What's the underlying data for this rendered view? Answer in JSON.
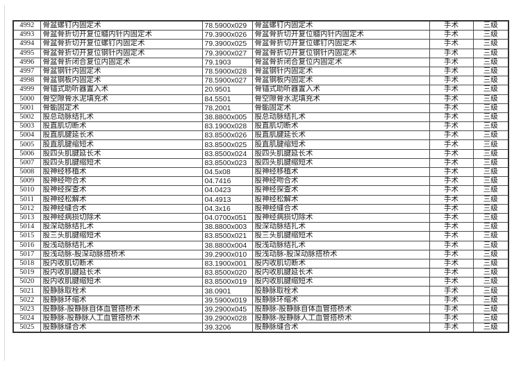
{
  "colors": {
    "background": "#ffffff",
    "table_border": "#4a4a4a",
    "table_outer_border": "#333333",
    "text": "#1a1a1a",
    "page_edge_line": "#d6d6d6"
  },
  "table": {
    "column_keys": [
      "sequence_number",
      "procedure_name",
      "procedure_code",
      "procedure_name_repeat",
      "category",
      "level"
    ],
    "rows": [
      [
        "4992",
        "骨盆螺钉内固定术",
        "78.5900x029",
        "骨盆螺钉内固定术",
        "手术",
        "三级"
      ],
      [
        "4993",
        "骨盆骨折切开复位髓内针内固定术",
        "79.3900x026",
        "骨盆骨折切开复位髓内针内固定术",
        "手术",
        "三级"
      ],
      [
        "4994",
        "骨盆骨折切开复位螺钉内固定术",
        "79.3900x025",
        "骨盆骨折切开复位螺钉内固定术",
        "手术",
        "三级"
      ],
      [
        "4995",
        "骨盆骨折切开复位钢针内固定术",
        "79.3900x027",
        "骨盆骨折切开复位钢针内固定术",
        "手术",
        "三级"
      ],
      [
        "4996",
        "骨盆骨折闭合复位内固定术",
        "79.1903",
        "骨盆骨折闭合复位内固定术",
        "手术",
        "三级"
      ],
      [
        "4997",
        "骨盆钢针内固定术",
        "78.5900x028",
        "骨盆钢针内固定术",
        "手术",
        "三级"
      ],
      [
        "4998",
        "骨盆钢板内固定术",
        "78.5900x027",
        "骨盆钢板内固定术",
        "手术",
        "三级"
      ],
      [
        "4999",
        "骨锚式助听器置入术",
        "20.9501",
        "骨锚式助听器置入术",
        "手术",
        "三级"
      ],
      [
        "5000",
        "骨空隙骨水泥填充术",
        "84.5501",
        "骨空隙骨水泥填充术",
        "手术",
        "三级"
      ],
      [
        "5001",
        "骨骺固定术",
        "78.2001",
        "骨骺固定术",
        "手术",
        "三级"
      ],
      [
        "5002",
        "股总动脉结扎术",
        "38.8800x005",
        "股总动脉结扎术",
        "手术",
        "三级"
      ],
      [
        "5003",
        "股直肌切断术",
        "83.1900x028",
        "股直肌切断术",
        "手术",
        "三级"
      ],
      [
        "5004",
        "股直肌腱延长术",
        "83.8500x026",
        "股直肌腱延长术",
        "手术",
        "三级"
      ],
      [
        "5005",
        "股直肌腱缩短术",
        "83.8500x025",
        "股直肌腱缩短术",
        "手术",
        "三级"
      ],
      [
        "5006",
        "股四头肌腱延长术",
        "83.8500x024",
        "股四头肌腱延长术",
        "手术",
        "三级"
      ],
      [
        "5007",
        "股四头肌腱缩短术",
        "83.8500x023",
        "股四头肌腱缩短术",
        "手术",
        "三级"
      ],
      [
        "5008",
        "股神经移植术",
        "04.5x08",
        "股神经移植术",
        "手术",
        "三级"
      ],
      [
        "5009",
        "股神经吻合术",
        "04.7416",
        "股神经吻合术",
        "手术",
        "三级"
      ],
      [
        "5010",
        "股神经探查术",
        "04.0423",
        "股神经探查术",
        "手术",
        "三级"
      ],
      [
        "5011",
        "股神经松解术",
        "04.4913",
        "股神经松解术",
        "手术",
        "三级"
      ],
      [
        "5012",
        "股神经缝合术",
        "04.3x16",
        "股神经缝合术",
        "手术",
        "三级"
      ],
      [
        "5013",
        "股神经病损切除术",
        "04.0700x051",
        "股神经病损切除术",
        "手术",
        "三级"
      ],
      [
        "5014",
        "股深动脉结扎术",
        "38.8800x003",
        "股深动脉结扎术",
        "手术",
        "三级"
      ],
      [
        "5015",
        "股三头肌腱缩短术",
        "83.8500x021",
        "股三头肌腱缩短术",
        "手术",
        "三级"
      ],
      [
        "5016",
        "股浅动脉结扎术",
        "38.8800x004",
        "股浅动脉结扎术",
        "手术",
        "三级"
      ],
      [
        "5017",
        "股浅动脉-股深动脉搭桥术",
        "39.2900x010",
        "股浅动脉-股深动脉搭桥术",
        "手术",
        "三级"
      ],
      [
        "5018",
        "股内收肌切断术",
        "83.1900x001",
        "股内收肌切断术",
        "手术",
        "三级"
      ],
      [
        "5019",
        "股内收肌腱延长术",
        "83.8500x020",
        "股内收肌腱延长术",
        "手术",
        "三级"
      ],
      [
        "5020",
        "股内收肌腱缩短术",
        "83.8500x019",
        "股内收肌腱缩短术",
        "手术",
        "三级"
      ],
      [
        "5021",
        "股静脉取栓术",
        "38.0901",
        "股静脉取栓术",
        "手术",
        "三级"
      ],
      [
        "5022",
        "股静脉环缩术",
        "39.5900x019",
        "股静脉环缩术",
        "手术",
        "三级"
      ],
      [
        "5023",
        "股静脉-股静脉自体血管搭桥术",
        "39.2900x045",
        "股静脉-股静脉自体血管搭桥术",
        "手术",
        "三级"
      ],
      [
        "5024",
        "股静脉-股静脉人工血管搭桥术",
        "39.2900x028",
        "股静脉-股静脉人工血管搭桥术",
        "手术",
        "三级"
      ],
      [
        "5025",
        "股静脉缝合术",
        "39.3206",
        "股静脉缝合术",
        "手术",
        "三级"
      ]
    ]
  }
}
